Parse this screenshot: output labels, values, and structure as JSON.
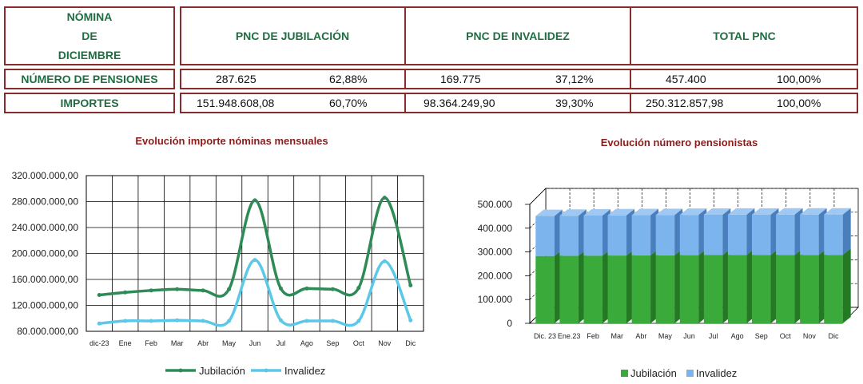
{
  "table": {
    "header": {
      "corner": [
        "NÓMINA",
        "DE",
        "DICIEMBRE"
      ],
      "col1": "PNC DE JUBILACIÓN",
      "col2": "PNC DE INVALIDEZ",
      "col3": "TOTAL PNC"
    },
    "rows": [
      {
        "label": "NÚMERO DE PENSIONES",
        "j_val": "287.625",
        "j_pct": "62,88%",
        "i_val": "169.775",
        "i_pct": "37,12%",
        "t_val": "457.400",
        "t_pct": "100,00%"
      },
      {
        "label": "IMPORTES",
        "j_val": "151.948.608,08",
        "j_pct": "60,70%",
        "i_val": "98.364.249,90",
        "i_pct": "39,30%",
        "t_val": "250.312.857,98",
        "t_pct": "100,00%"
      }
    ]
  },
  "chart_data": [
    {
      "type": "line",
      "title": "Evolución importe nóminas mensuales",
      "categories": [
        "dic-23",
        "Ene",
        "Feb",
        "Mar",
        "Abr",
        "May",
        "Jun",
        "Jul",
        "Ago",
        "Sep",
        "Oct",
        "Nov",
        "Dic"
      ],
      "series": [
        {
          "name": "Jubilación",
          "color": "#2e8b57",
          "values": [
            136000000,
            140000000,
            143000000,
            145000000,
            143000000,
            145000000,
            282000000,
            146000000,
            146000000,
            145000000,
            147000000,
            286000000,
            151000000
          ]
        },
        {
          "name": "Invalidez",
          "color": "#5bc8e8",
          "values": [
            92000000,
            96000000,
            96000000,
            97000000,
            96000000,
            96000000,
            190000000,
            97000000,
            96000000,
            96000000,
            96000000,
            188000000,
            97000000
          ]
        }
      ],
      "ylim": [
        80000000,
        320000000
      ],
      "yticks": [
        80000000,
        120000000,
        160000000,
        200000000,
        240000000,
        280000000,
        320000000
      ],
      "ytick_labels": [
        "80.000.000,00",
        "120.000.000,00",
        "160.000.000,00",
        "200.000.000,00",
        "240.000.000,00",
        "280.000.000,00",
        "320.000.000,00"
      ],
      "grid": true,
      "legend": "bottom"
    },
    {
      "type": "bar",
      "stacked": true,
      "title": "Evolución número pensionistas",
      "categories": [
        "Dic. 23",
        "Ene.23",
        "Feb",
        "Mar",
        "Abr",
        "May",
        "Jun",
        "Jul",
        "Ago",
        "Sep",
        "Oct",
        "Nov",
        "Dic"
      ],
      "series": [
        {
          "name": "Jubilación",
          "color": "#3aaa3a",
          "values": [
            283000,
            284000,
            284500,
            285000,
            285500,
            286000,
            286500,
            287000,
            287200,
            287300,
            287400,
            287500,
            287625
          ]
        },
        {
          "name": "Invalidez",
          "color": "#7cb4ee",
          "values": [
            168000,
            168300,
            168600,
            168900,
            169000,
            169200,
            169300,
            169400,
            169500,
            169600,
            169650,
            169700,
            169775
          ]
        }
      ],
      "ylim": [
        0,
        500000
      ],
      "yticks": [
        0,
        100000,
        200000,
        300000,
        400000,
        500000
      ],
      "ytick_labels": [
        "0",
        "100.000",
        "200.000",
        "300.000",
        "400.000",
        "500.000"
      ],
      "grid": true,
      "legend": "bottom"
    }
  ]
}
